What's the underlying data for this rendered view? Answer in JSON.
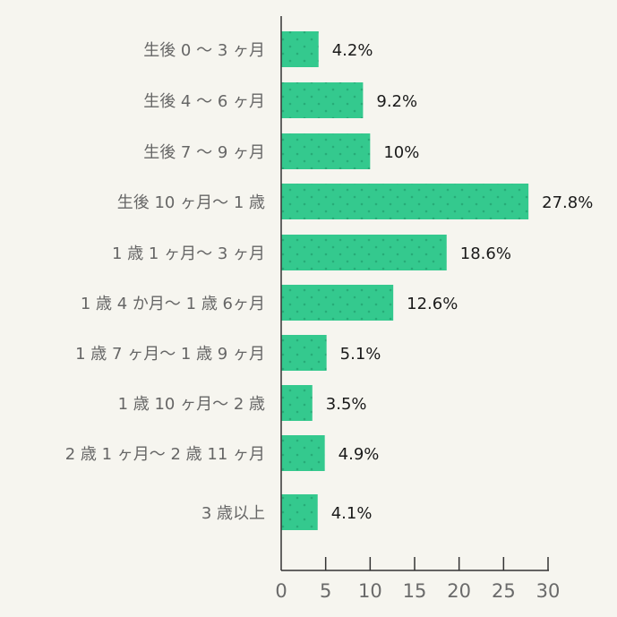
{
  "chart_data": {
    "type": "bar",
    "orientation": "horizontal",
    "categories": [
      "生後 0 〜 3 ヶ月",
      "生後 4 〜 6 ヶ月",
      "生後 7 〜 9 ヶ月",
      "生後 10 ヶ月〜 1 歳",
      "1 歳 1 ヶ月〜 3 ヶ月",
      "1 歳 4 か月〜 1 歳 6ヶ月",
      "1 歳 7 ヶ月〜 1 歳 9 ヶ月",
      "1 歳 10 ヶ月〜 2 歳",
      "2 歳 1 ヶ月〜 2 歳 11 ヶ月",
      "3 歳以上"
    ],
    "values": [
      4.2,
      9.2,
      10,
      27.8,
      18.6,
      12.6,
      5.1,
      3.5,
      4.9,
      4.1
    ],
    "data_labels": [
      "4.2%",
      "9.2%",
      "10%",
      "27.8%",
      "18.6%",
      "12.6%",
      "5.1%",
      "3.5%",
      "4.9%",
      "4.1%"
    ],
    "xlim": [
      0,
      30
    ],
    "x_ticks": [
      "0",
      "5",
      "10",
      "15",
      "20",
      "25",
      "30"
    ],
    "grid": false,
    "bar_color": "#34c98e",
    "bar_dot_color": "#27ac78",
    "background": "#f6f5ef"
  }
}
